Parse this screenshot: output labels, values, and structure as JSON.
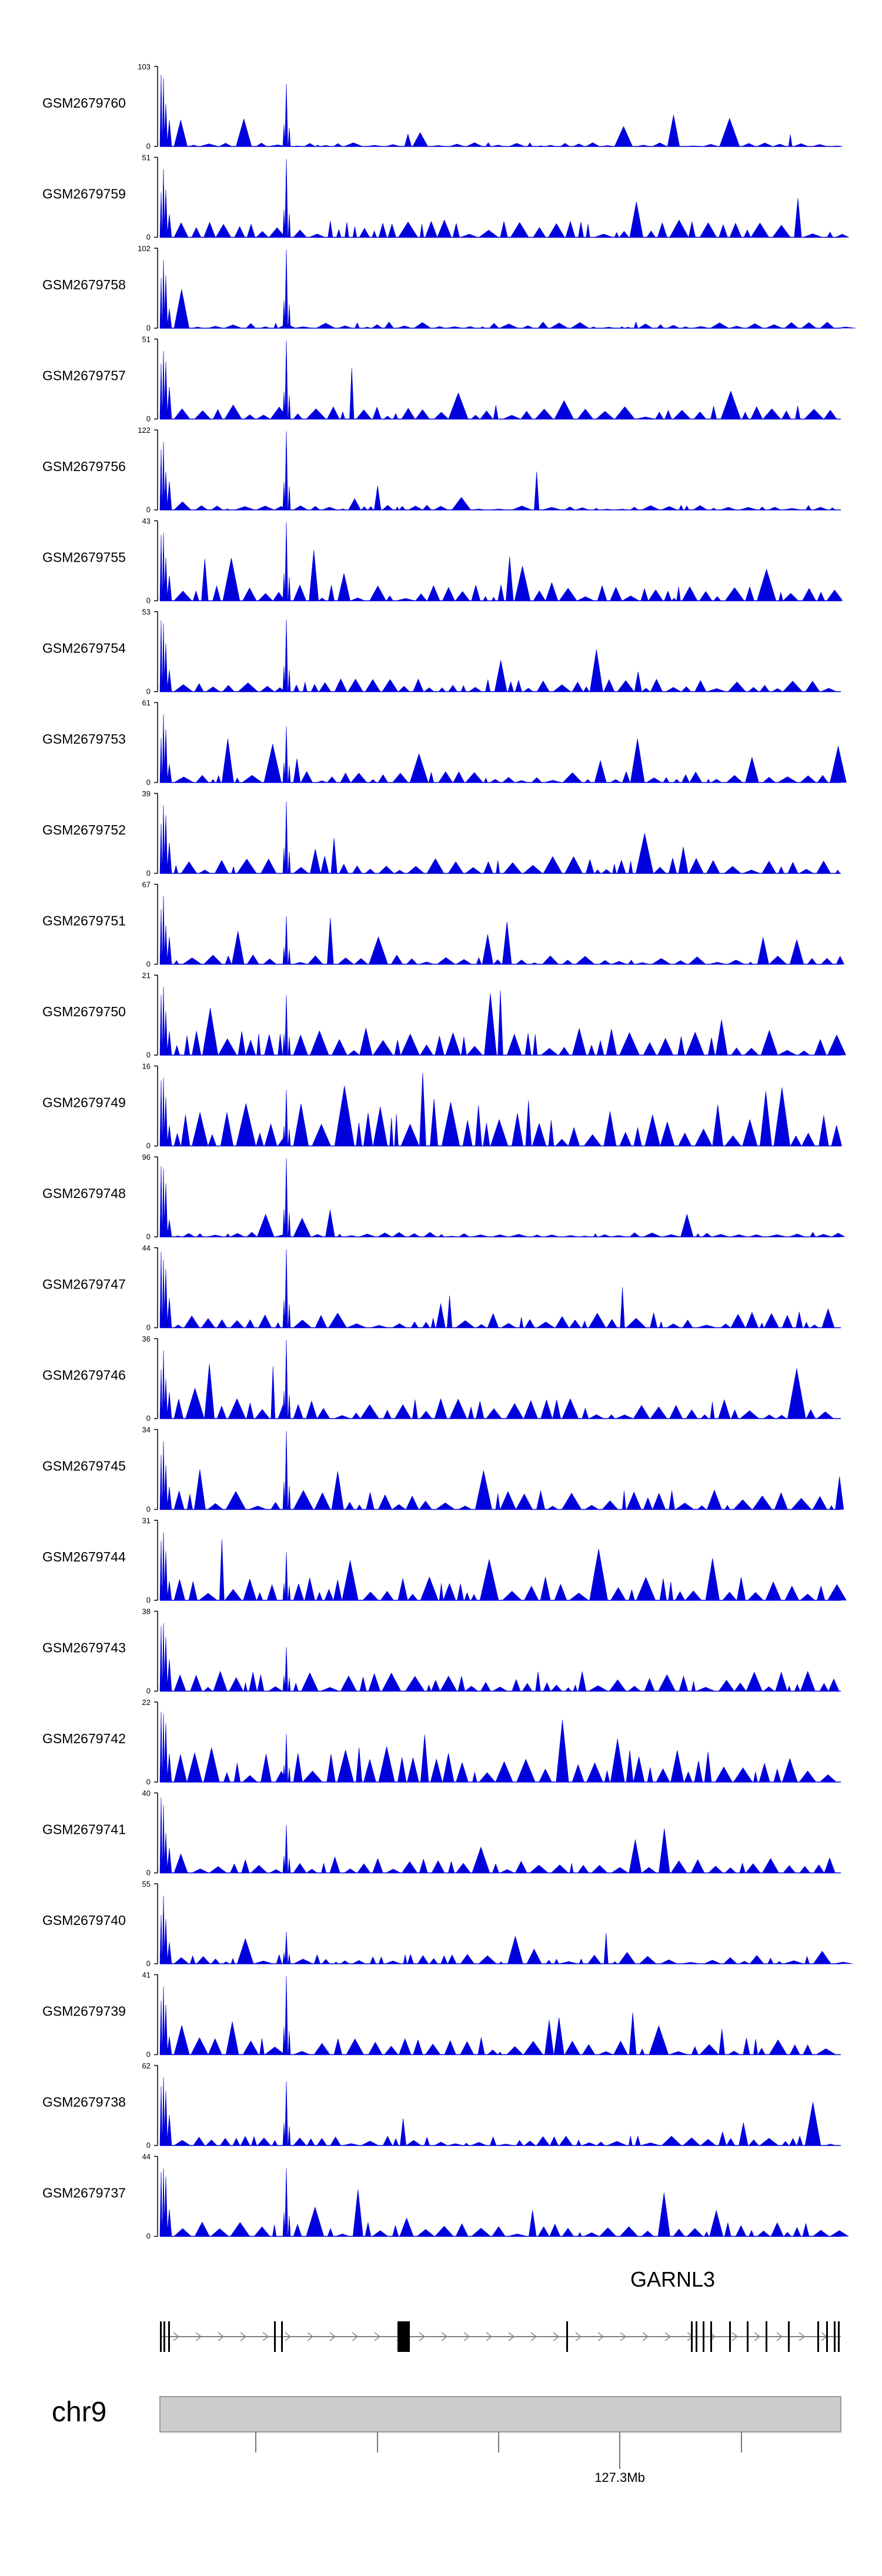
{
  "chart_data": {
    "type": "area",
    "color": "#0000dd",
    "tracks": [
      {
        "name": "GSM2679760",
        "max": "103",
        "min": "0",
        "seed": 60,
        "baseline": 0.05,
        "main_peak": 0.78
      },
      {
        "name": "GSM2679759",
        "max": "51",
        "min": "0",
        "seed": 59,
        "baseline": 0.22,
        "main_peak": 0.98
      },
      {
        "name": "GSM2679758",
        "max": "102",
        "min": "0",
        "seed": 58,
        "baseline": 0.08,
        "main_peak": 0.98
      },
      {
        "name": "GSM2679757",
        "max": "51",
        "min": "0",
        "seed": 57,
        "baseline": 0.18,
        "main_peak": 0.98
      },
      {
        "name": "GSM2679756",
        "max": "122",
        "min": "0",
        "seed": 56,
        "baseline": 0.06,
        "main_peak": 0.98
      },
      {
        "name": "GSM2679755",
        "max": "43",
        "min": "0",
        "seed": 55,
        "baseline": 0.2,
        "main_peak": 0.98
      },
      {
        "name": "GSM2679754",
        "max": "53",
        "min": "0",
        "seed": 54,
        "baseline": 0.16,
        "main_peak": 0.9
      },
      {
        "name": "GSM2679753",
        "max": "61",
        "min": "0",
        "seed": 53,
        "baseline": 0.14,
        "main_peak": 0.7
      },
      {
        "name": "GSM2679752",
        "max": "39",
        "min": "0",
        "seed": 52,
        "baseline": 0.22,
        "main_peak": 0.9
      },
      {
        "name": "GSM2679751",
        "max": "67",
        "min": "0",
        "seed": 51,
        "baseline": 0.12,
        "main_peak": 0.6
      },
      {
        "name": "GSM2679750",
        "max": "21",
        "min": "0",
        "seed": 50,
        "baseline": 0.35,
        "main_peak": 0.75
      },
      {
        "name": "GSM2679749",
        "max": "16",
        "min": "0",
        "seed": 49,
        "baseline": 0.55,
        "main_peak": 0.7
      },
      {
        "name": "GSM2679748",
        "max": "96",
        "min": "0",
        "seed": 48,
        "baseline": 0.06,
        "main_peak": 0.98
      },
      {
        "name": "GSM2679747",
        "max": "44",
        "min": "0",
        "seed": 47,
        "baseline": 0.2,
        "main_peak": 0.98
      },
      {
        "name": "GSM2679746",
        "max": "36",
        "min": "0",
        "seed": 46,
        "baseline": 0.25,
        "main_peak": 0.98
      },
      {
        "name": "GSM2679745",
        "max": "34",
        "min": "0",
        "seed": 45,
        "baseline": 0.25,
        "main_peak": 0.98
      },
      {
        "name": "GSM2679744",
        "max": "31",
        "min": "0",
        "seed": 44,
        "baseline": 0.3,
        "main_peak": 0.6
      },
      {
        "name": "GSM2679743",
        "max": "38",
        "min": "0",
        "seed": 43,
        "baseline": 0.25,
        "main_peak": 0.55
      },
      {
        "name": "GSM2679742",
        "max": "22",
        "min": "0",
        "seed": 42,
        "baseline": 0.45,
        "main_peak": 0.6
      },
      {
        "name": "GSM2679741",
        "max": "40",
        "min": "0",
        "seed": 41,
        "baseline": 0.2,
        "main_peak": 0.6
      },
      {
        "name": "GSM2679740",
        "max": "55",
        "min": "0",
        "seed": 40,
        "baseline": 0.12,
        "main_peak": 0.4
      },
      {
        "name": "GSM2679739",
        "max": "41",
        "min": "0",
        "seed": 39,
        "baseline": 0.22,
        "main_peak": 0.98
      },
      {
        "name": "GSM2679738",
        "max": "62",
        "min": "0",
        "seed": 38,
        "baseline": 0.12,
        "main_peak": 0.8
      },
      {
        "name": "GSM2679737",
        "max": "44",
        "min": "0",
        "seed": 37,
        "baseline": 0.2,
        "main_peak": 0.85
      }
    ],
    "gene": {
      "name": "GARNL3"
    },
    "chromosome": "chr9",
    "axis_tick_label": "127.3Mb"
  }
}
